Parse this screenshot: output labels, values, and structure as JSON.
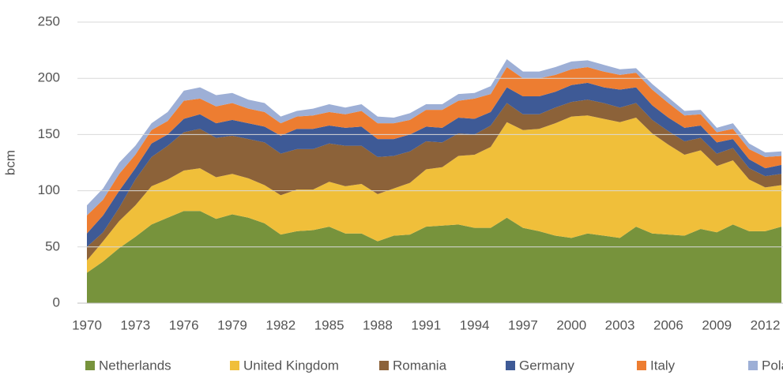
{
  "chart_data": {
    "type": "stacked_area",
    "y_label": "bcm",
    "x": [
      1970,
      1971,
      1972,
      1973,
      1974,
      1975,
      1976,
      1977,
      1978,
      1979,
      1980,
      1981,
      1982,
      1983,
      1984,
      1985,
      1986,
      1987,
      1988,
      1989,
      1990,
      1991,
      1992,
      1993,
      1994,
      1995,
      1996,
      1997,
      1998,
      1999,
      2000,
      2001,
      2002,
      2003,
      2004,
      2005,
      2006,
      2007,
      2008,
      2009,
      2010,
      2011,
      2012,
      2013
    ],
    "xlim": [
      1970,
      2013
    ],
    "xticks": [
      1970,
      1973,
      1976,
      1979,
      1982,
      1985,
      1988,
      1991,
      1994,
      1997,
      2000,
      2003,
      2006,
      2009,
      2012
    ],
    "ylim": [
      0,
      250
    ],
    "yticks": [
      0,
      50,
      100,
      150,
      200,
      250
    ],
    "grid": true,
    "legend": "bottom",
    "series": [
      {
        "name": "Netherlands",
        "color": "#77933c",
        "values": [
          27,
          37,
          49,
          59,
          70,
          76,
          82,
          82,
          75,
          79,
          76,
          71,
          61,
          64,
          65,
          68,
          62,
          62,
          55,
          60,
          61,
          68,
          69,
          70,
          67,
          67,
          76,
          67,
          64,
          60,
          58,
          62,
          60,
          58,
          68,
          62,
          61,
          60,
          66,
          63,
          70,
          64,
          64,
          68
        ]
      },
      {
        "name": "United Kingdom",
        "color": "#f0bf3a",
        "values": [
          11,
          18,
          24,
          28,
          34,
          34,
          36,
          38,
          37,
          36,
          35,
          34,
          35,
          37,
          36,
          40,
          42,
          44,
          42,
          42,
          46,
          51,
          52,
          61,
          65,
          72,
          85,
          87,
          91,
          100,
          108,
          105,
          104,
          103,
          97,
          89,
          80,
          72,
          70,
          59,
          57,
          46,
          39,
          37
        ]
      },
      {
        "name": "Romania",
        "color": "#8c6239",
        "values": [
          12,
          8,
          12,
          23,
          26,
          30,
          34,
          35,
          35,
          34,
          35,
          38,
          37,
          36,
          36,
          34,
          36,
          34,
          33,
          29,
          28,
          25,
          22,
          20,
          18,
          19,
          17,
          14,
          13,
          14,
          13,
          14,
          14,
          13,
          13,
          12,
          12,
          12,
          11,
          11,
          11,
          10,
          10,
          10
        ]
      },
      {
        "name": "Germany",
        "color": "#3e5a96",
        "values": [
          12,
          15,
          15,
          10,
          12,
          10,
          12,
          13,
          13,
          14,
          14,
          14,
          16,
          18,
          18,
          16,
          16,
          17,
          16,
          15,
          15,
          13,
          13,
          14,
          14,
          12,
          14,
          16,
          16,
          14,
          15,
          15,
          14,
          16,
          14,
          13,
          12,
          12,
          11,
          10,
          8,
          8,
          7,
          8
        ]
      },
      {
        "name": "Italy",
        "color": "#ed7d31",
        "values": [
          16,
          14,
          15,
          12,
          12,
          12,
          16,
          14,
          15,
          15,
          13,
          13,
          11,
          11,
          12,
          12,
          12,
          14,
          14,
          14,
          13,
          15,
          16,
          15,
          18,
          16,
          18,
          16,
          16,
          15,
          14,
          14,
          14,
          13,
          13,
          14,
          13,
          11,
          10,
          9,
          9,
          9,
          10,
          8
        ]
      },
      {
        "name": "Poland",
        "color": "#9dafd6",
        "values": [
          9,
          10,
          10,
          8,
          6,
          8,
          9,
          10,
          10,
          9,
          8,
          8,
          6,
          5,
          6,
          7,
          6,
          6,
          6,
          5,
          6,
          5,
          5,
          6,
          5,
          7,
          7,
          6,
          6,
          7,
          7,
          6,
          6,
          5,
          4,
          5,
          5,
          4,
          4,
          4,
          5,
          5,
          4,
          4
        ]
      }
    ]
  }
}
